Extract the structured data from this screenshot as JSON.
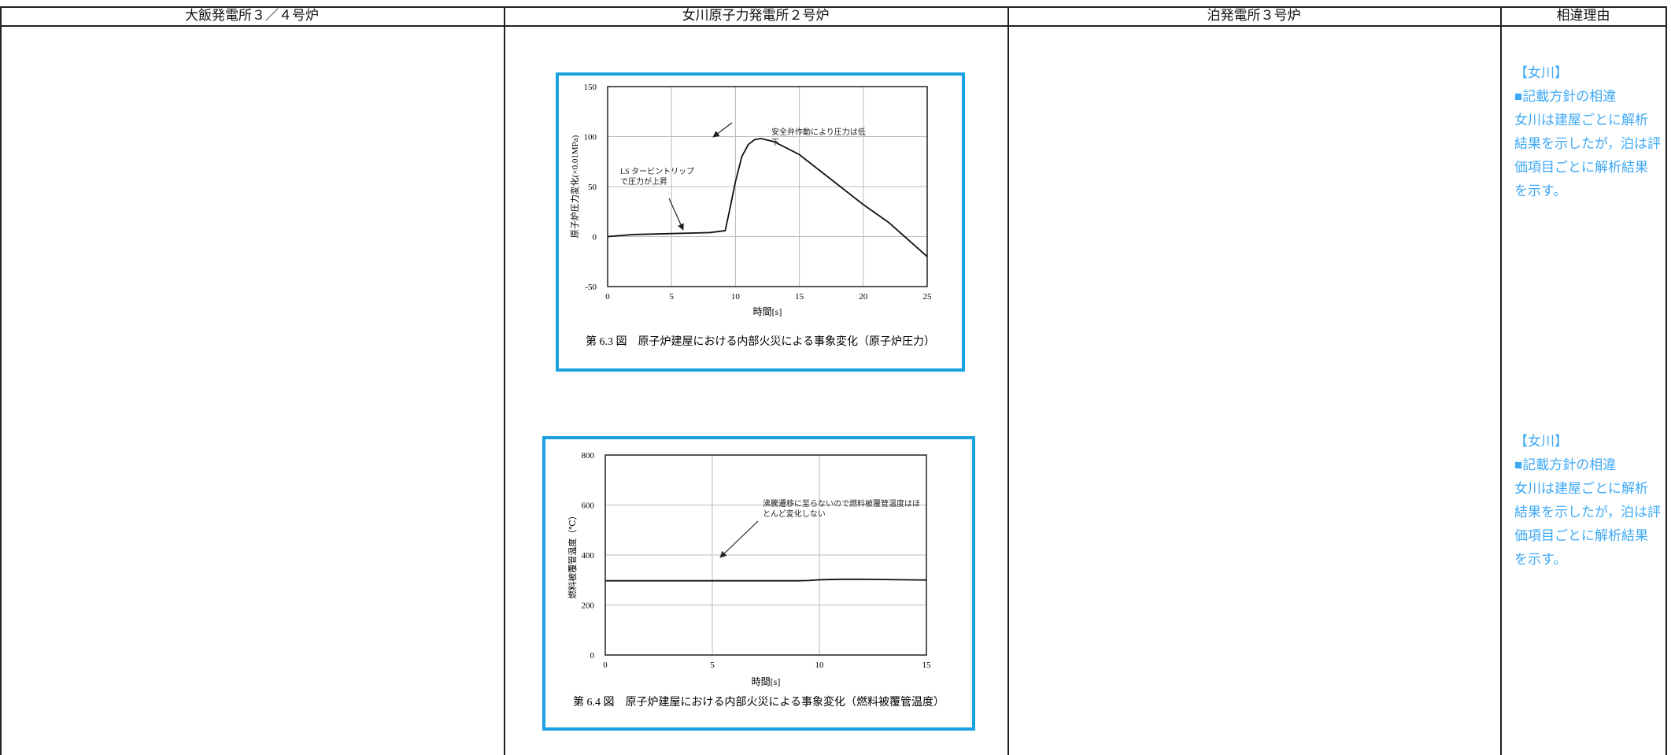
{
  "table": {
    "headers": [
      "大飯発電所３／４号炉",
      "女川原子力発電所２号炉",
      "泊発電所３号炉",
      "相違理由"
    ],
    "rows": [
      {
        "chart": {
          "type": "line",
          "caption": "第 6.3 図　原子炉建屋における内部火災による事象変化（原子炉圧力）",
          "xlabel": "時間[s]",
          "ylabel": "原子炉圧力変化(×0.01MPa)",
          "xlim": [
            0,
            25
          ],
          "xticks": [
            0,
            5,
            10,
            15,
            20,
            25
          ],
          "ylim": [
            -50,
            150
          ],
          "yticks": [
            -50,
            0,
            50,
            100,
            150
          ],
          "grid": true,
          "annotations": [
            "安全弁作動により圧力は低下",
            "LS タービントリップで圧力が上昇"
          ],
          "series": [
            {
              "color": "#111111",
              "x": [
                0,
                2,
                5,
                8,
                9.2,
                9.6,
                10,
                10.5,
                11,
                11.5,
                12,
                13,
                15,
                17,
                20,
                22,
                25
              ],
              "values": [
                0,
                2,
                3,
                4,
                6,
                30,
                55,
                80,
                92,
                97,
                98,
                95,
                82,
                62,
                32,
                14,
                -20
              ]
            }
          ]
        },
        "reason": {
          "tag": "【女川】",
          "heading": "■記載方針の相違",
          "body": "女川は建屋ごとに解析結果を示したが，泊は評価項目ごとに解析結果を示す。"
        }
      },
      {
        "chart": {
          "type": "line",
          "caption": "第 6.4 図　原子炉建屋における内部火災による事象変化（燃料被覆管温度）",
          "xlabel": "時間[s]",
          "ylabel": "燃料被覆管温度（℃）",
          "xlim": [
            0,
            15
          ],
          "xticks": [
            0,
            5,
            10,
            15
          ],
          "ylim": [
            0,
            800
          ],
          "yticks": [
            0,
            200,
            400,
            600,
            800
          ],
          "grid": true,
          "annotations": [
            "沸騰遷移に至らないので燃料被覆管温度はほとんど変化しない"
          ],
          "series": [
            {
              "color": "#111111",
              "x": [
                0,
                3,
                6,
                9,
                9.5,
                10,
                11,
                12,
                13,
                15
              ],
              "values": [
                297,
                297,
                297,
                297,
                298,
                301,
                303,
                303,
                302,
                300
              ]
            }
          ]
        },
        "reason": {
          "tag": "【女川】",
          "heading": "■記載方針の相違",
          "body": "女川は建屋ごとに解析結果を示したが，泊は評価項目ごとに解析結果を示す。"
        }
      }
    ]
  }
}
